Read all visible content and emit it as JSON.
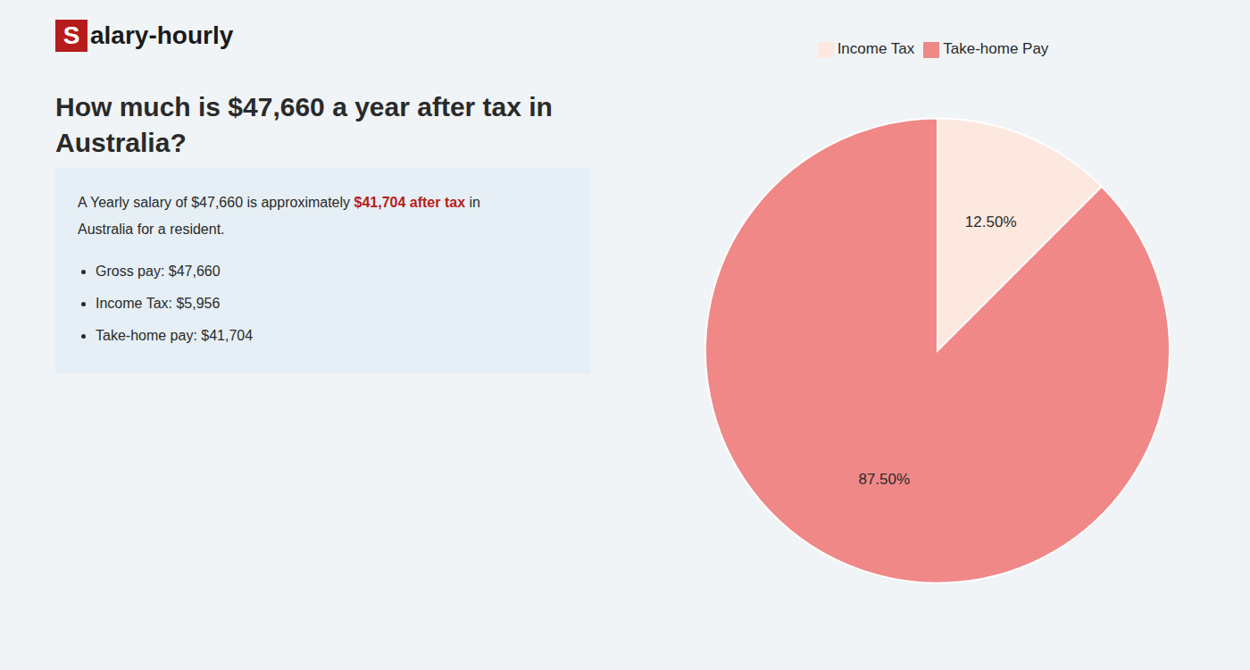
{
  "chart_data": {
    "type": "pie",
    "title": [
      "How much is $47,660 a year after tax in",
      "Australia?"
    ],
    "annotations": [
      [
        {
          "text": "S",
          "color": "#b71c1c"
        },
        {
          "text": "alary-hourly"
        }
      ],
      [
        {
          "text": "A Yearly salary of $47,660 is approximately "
        },
        {
          "text": "$41,704 after tax",
          "color": "#b71c1c"
        },
        {
          "text": " in"
        }
      ],
      [
        {
          "text": "Australia for a resident."
        }
      ],
      [
        {
          "text": "Gross pay: $47,660"
        }
      ],
      [
        {
          "text": "Income Tax: $5,956"
        }
      ],
      [
        {
          "text": "Take-home pay: $41,704"
        }
      ]
    ],
    "categories": [
      "Income Tax",
      "Take-home Pay"
    ],
    "values": [
      12.5,
      87.5
    ],
    "value_labels": [
      "12.50%",
      "87.50%"
    ],
    "colors": [
      "#fce8df",
      "#f08888"
    ],
    "data_labels": true,
    "legend": "top"
  }
}
